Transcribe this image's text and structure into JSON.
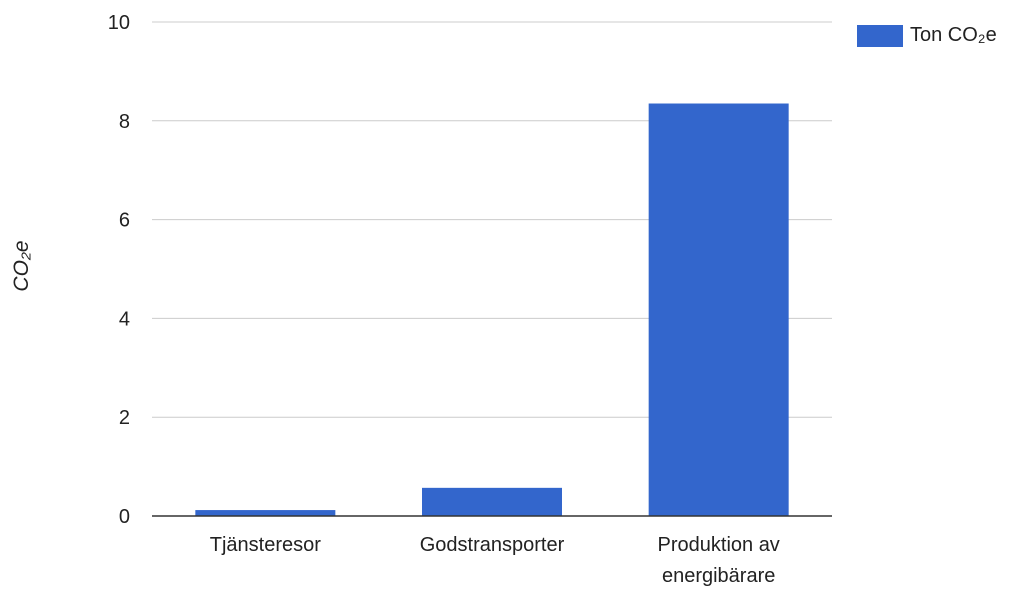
{
  "chart_data": {
    "type": "bar",
    "categories": [
      "Tjänsteresor",
      "Godstransporter",
      "Produktion av energibärare"
    ],
    "category_lines": [
      [
        "Tjänsteresor"
      ],
      [
        "Godstransporter"
      ],
      [
        "Produktion av",
        "energibärare"
      ]
    ],
    "series": [
      {
        "name": "Ton CO₂e",
        "values": [
          0.12,
          0.57,
          8.35
        ]
      }
    ],
    "ylabel": "CO₂e",
    "xlabel": "",
    "ylim": [
      0,
      10
    ],
    "yticks": [
      0,
      2,
      4,
      6,
      8,
      10
    ],
    "grid": true,
    "legend_position": "top-right",
    "colors": {
      "bar": "#3366cc",
      "grid": "#cccccc",
      "axis": "#333333",
      "text": "#222222"
    }
  }
}
